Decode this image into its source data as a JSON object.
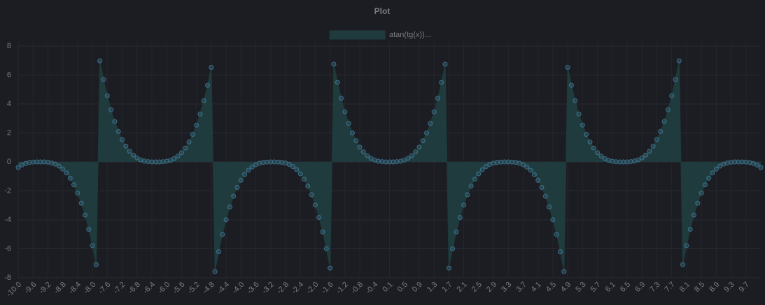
{
  "chart_data": {
    "type": "line",
    "title": "Plot",
    "categories": [
      "-10.0",
      null,
      null,
      null,
      "-9.6",
      null,
      null,
      null,
      "-9.2",
      null,
      null,
      null,
      "-8.8",
      null,
      null,
      null,
      "-8.4",
      null,
      null,
      null,
      "-8.0",
      null,
      null,
      null,
      "-7.6",
      null,
      null,
      null,
      "-7.2",
      null,
      null,
      null,
      "-6.8",
      null,
      null,
      null,
      "-6.4",
      null,
      null,
      null,
      "-6.0",
      null,
      null,
      null,
      "-5.6",
      null,
      null,
      null,
      "-5.2",
      null,
      null,
      null,
      "-4.8",
      null,
      null,
      null,
      "-4.4",
      null,
      null,
      null,
      "-4.0",
      null,
      null,
      null,
      "-3.6",
      null,
      null,
      null,
      "-3.2",
      null,
      null,
      null,
      "-2.8",
      null,
      null,
      null,
      "-2.4",
      null,
      null,
      null,
      "-2.0",
      null,
      null,
      null,
      "-1.6",
      null,
      null,
      null,
      "-1.2",
      null,
      null,
      null,
      "-0.8",
      null,
      null,
      null,
      "-0.4",
      null,
      null,
      null,
      "0.1",
      null,
      null,
      null,
      "0.5",
      null,
      null,
      null,
      "0.9",
      null,
      null,
      null,
      "1.3",
      null,
      null,
      null,
      "1.7",
      null,
      null,
      null,
      "2.1",
      null,
      null,
      null,
      "2.5",
      null,
      null,
      null,
      "2.9",
      null,
      null,
      null,
      "3.3",
      null,
      null,
      null,
      "3.7",
      null,
      null,
      null,
      "4.1",
      null,
      null,
      null,
      "4.5",
      null,
      null,
      null,
      "4.9",
      null,
      null,
      null,
      "5.3",
      null,
      null,
      null,
      "5.7",
      null,
      null,
      null,
      "6.1",
      null,
      null,
      null,
      "6.5",
      null,
      null,
      null,
      "6.9",
      null,
      null,
      null,
      "7.3",
      null,
      null,
      null,
      "7.7",
      null,
      null,
      null,
      "8.1",
      null,
      null,
      null,
      "8.5",
      null,
      null,
      null,
      "8.9",
      null,
      null,
      null,
      "9.3",
      null,
      null,
      null,
      "9.7",
      null,
      null,
      null,
      null
    ],
    "series": [
      {
        "name": "atan(tg(x))...",
        "color": "#3b7088",
        "fill": "#1f3b3d",
        "values": [
          -0.38,
          -0.21,
          -0.11,
          -0.04,
          -0.01,
          0,
          0,
          0,
          -0.02,
          -0.07,
          -0.15,
          -0.29,
          -0.49,
          -0.76,
          -1.12,
          -1.58,
          -2.15,
          -2.85,
          -3.67,
          -4.65,
          -5.78,
          -7.09,
          6.98,
          5.69,
          4.57,
          3.6,
          2.79,
          2.1,
          1.54,
          1.09,
          0.74,
          0.47,
          0.28,
          0.14,
          0.06,
          0.02,
          0,
          0,
          0,
          0.01,
          0.05,
          0.11,
          0.23,
          0.4,
          0.64,
          0.96,
          1.38,
          1.9,
          2.54,
          3.31,
          4.23,
          5.29,
          6.53,
          -7.57,
          -6.2,
          -5.01,
          -3.99,
          -3.11,
          -2.37,
          -1.76,
          -1.27,
          -0.87,
          -0.57,
          -0.35,
          -0.19,
          -0.09,
          -0.03,
          -0.01,
          0,
          0,
          -0.01,
          -0.03,
          -0.08,
          -0.17,
          -0.32,
          -0.53,
          -0.82,
          -1.19,
          -1.67,
          -2.26,
          -2.98,
          -3.83,
          -4.83,
          -5.99,
          -7.33,
          6.75,
          5.49,
          4.39,
          3.46,
          2.66,
          2,
          1.46,
          1.02,
          0.69,
          0.43,
          0.25,
          0.13,
          0.05,
          0.02,
          0,
          0,
          0,
          0.02,
          0.05,
          0.13,
          0.25,
          0.43,
          0.69,
          1.02,
          1.46,
          2,
          2.66,
          3.46,
          4.39,
          5.49,
          6.75,
          -7.33,
          -5.99,
          -4.83,
          -3.83,
          -2.98,
          -2.26,
          -1.67,
          -1.19,
          -0.82,
          -0.53,
          -0.32,
          -0.17,
          -0.08,
          -0.03,
          -0.01,
          0,
          0,
          -0.01,
          -0.03,
          -0.09,
          -0.19,
          -0.35,
          -0.57,
          -0.87,
          -1.27,
          -1.76,
          -2.37,
          -3.11,
          -3.99,
          -5.01,
          -6.2,
          -7.57,
          6.53,
          5.29,
          4.23,
          3.31,
          2.54,
          1.9,
          1.38,
          0.96,
          0.64,
          0.4,
          0.23,
          0.11,
          0.05,
          0.01,
          0,
          0,
          0,
          0.02,
          0.06,
          0.14,
          0.28,
          0.47,
          0.74,
          1.09,
          1.54,
          2.1,
          2.79,
          3.6,
          4.57,
          5.69,
          6.98,
          -7.09,
          -5.78,
          -4.65,
          -3.67,
          -2.85,
          -2.15,
          -1.58,
          -1.12,
          -0.76,
          -0.49,
          -0.29,
          -0.15,
          -0.07,
          -0.02,
          0,
          0,
          0,
          -0.01,
          -0.04,
          -0.11,
          -0.21,
          -0.38
        ]
      }
    ],
    "ylim": [
      -8,
      8
    ],
    "yticks": [
      -8,
      -6,
      -4,
      -2,
      0,
      2,
      4,
      6,
      8
    ],
    "grid": true,
    "legend": "top"
  }
}
